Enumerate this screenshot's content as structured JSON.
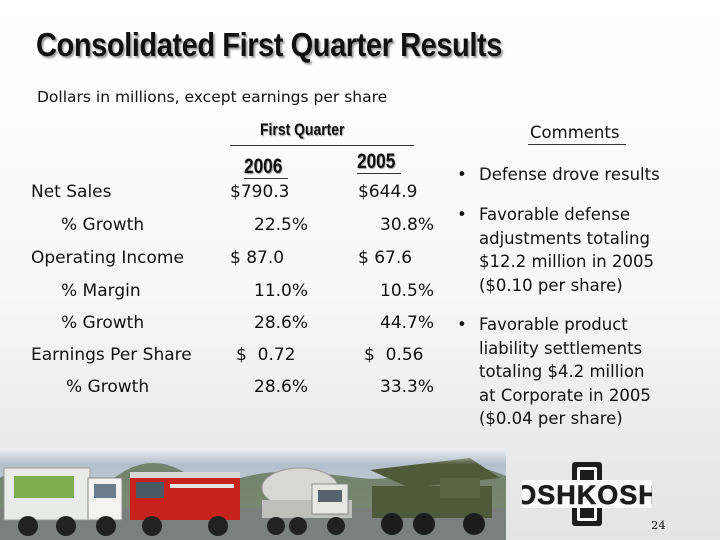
{
  "slide": {
    "title": "Consolidated First Quarter Results",
    "subtitle": "Dollars in millions, except earnings per share",
    "period_header": "First Quarter",
    "year_a": "2006",
    "year_b": "2005",
    "comments_header": "Comments",
    "page_number": "24"
  },
  "table": {
    "rows": [
      {
        "label": "Net Sales",
        "a": "$790.3",
        "b": "$644.9"
      },
      {
        "label": "% Growth",
        "a": "22.5%",
        "b": "30.8%"
      },
      {
        "label": "Operating Income",
        "a": "$ 87.0",
        "b": "$ 67.6"
      },
      {
        "label": "% Margin",
        "a": "11.0%",
        "b": "10.5%"
      },
      {
        "label": "% Growth",
        "a": "28.6%",
        "b": "44.7%"
      },
      {
        "label": "Earnings Per Share",
        "a": "$  0.72",
        "b": "$  0.56"
      },
      {
        "label": "% Growth",
        "a": "28.6%",
        "b": "33.3%"
      }
    ]
  },
  "comments": [
    {
      "lines": [
        "Defense drove results"
      ]
    },
    {
      "lines": [
        "Favorable defense",
        "adjustments totaling",
        "$12.2 million in 2005",
        "($0.10 per share)"
      ]
    },
    {
      "lines": [
        "Favorable product",
        "liability settlements",
        "totaling $4.2 million",
        "at Corporate in 2005",
        "($0.04 per share)"
      ]
    }
  ],
  "logo": {
    "brand": "OSHKOSH"
  },
  "icons": {
    "bullet": "bullet-dot-icon"
  },
  "colors": {
    "text": "#111111",
    "truck_red": "#c8221c",
    "truck_green": "#4f5a3a",
    "logo_dark": "#1c1c1c"
  }
}
